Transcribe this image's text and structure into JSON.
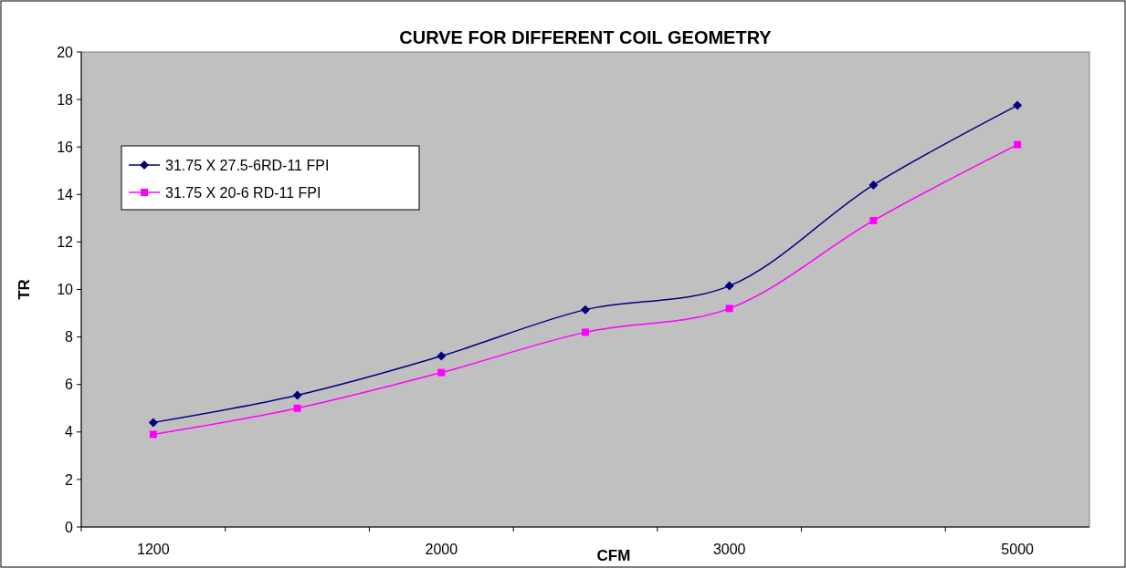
{
  "chart_data": {
    "type": "line",
    "title": "CURVE FOR DIFFERENT COIL GEOMETRY",
    "xlabel": "CFM",
    "ylabel": "TR",
    "categories": [
      "1200",
      null,
      "2000",
      null,
      "3000",
      null,
      "5000"
    ],
    "series": [
      {
        "name": "31.75 X 27.5-6RD-11 FPI",
        "color": "#000080",
        "marker": "diamond",
        "values": [
          4.4,
          5.55,
          7.2,
          9.15,
          10.15,
          14.4,
          17.75
        ]
      },
      {
        "name": "31.75 X 20-6 RD-11 FPI",
        "color": "#ff00ff",
        "marker": "square",
        "values": [
          3.9,
          5.0,
          6.5,
          8.2,
          9.2,
          12.9,
          16.1
        ]
      }
    ],
    "ylim": [
      0,
      20
    ],
    "yticks": [
      0,
      2,
      4,
      6,
      8,
      10,
      12,
      14,
      16,
      18,
      20
    ],
    "grid": false,
    "legend": "top left"
  }
}
